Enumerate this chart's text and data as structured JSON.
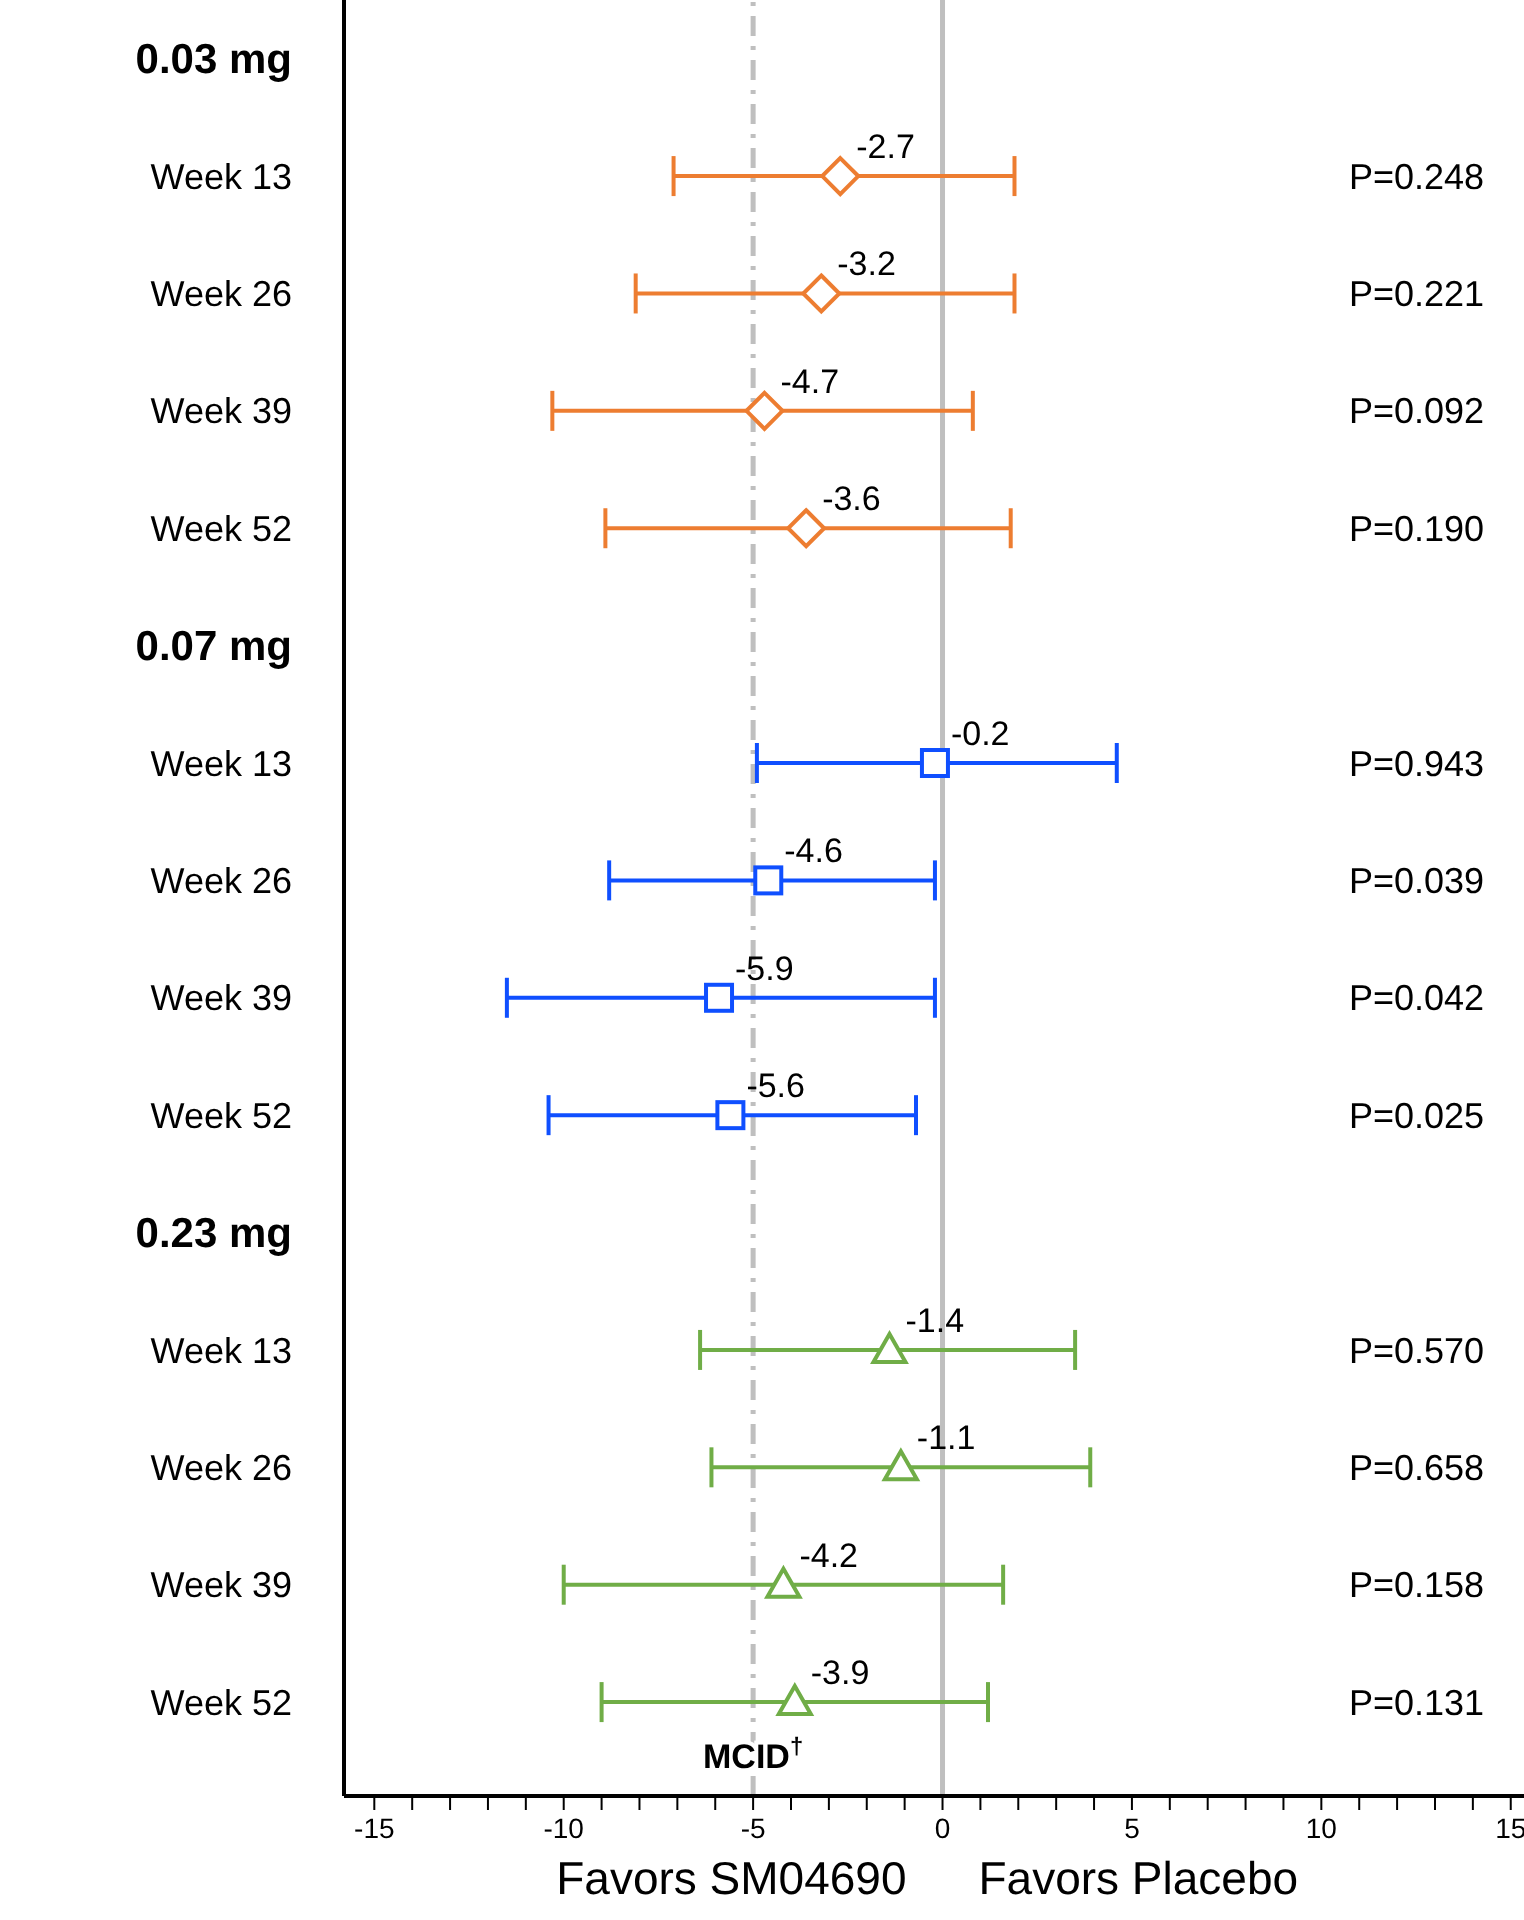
{
  "chart_data": {
    "type": "scatter",
    "orientation": "horizontal",
    "categories": [
      "0.03 mg",
      "Week 13",
      "Week 26",
      "Week 39",
      "Week 52",
      "0.07 mg",
      "Week 13",
      "Week 26",
      "Week 39",
      "Week 52",
      "0.23 mg",
      "Week 13",
      "Week 26",
      "Week 39",
      "Week 52"
    ],
    "series": [
      {
        "color": "#ed7d31",
        "marker": "diamond",
        "values": [
          null,
          -2.7,
          -3.2,
          -4.7,
          -3.6,
          null,
          null,
          null,
          null,
          null,
          null,
          null,
          null,
          null,
          null
        ],
        "errors": [
          null,
          [
            -7.1,
            1.9
          ],
          [
            -8.1,
            1.9
          ],
          [
            -10.3,
            0.8
          ],
          [
            -8.9,
            1.8
          ],
          null,
          null,
          null,
          null,
          null,
          null,
          null,
          null,
          null,
          null
        ]
      },
      {
        "color": "#0f4fff",
        "marker": "square",
        "values": [
          null,
          null,
          null,
          null,
          null,
          null,
          -0.2,
          -4.6,
          -5.9,
          -5.6,
          null,
          null,
          null,
          null,
          null
        ],
        "errors": [
          null,
          null,
          null,
          null,
          null,
          null,
          [
            -4.9,
            4.6
          ],
          [
            -8.8,
            -0.2
          ],
          [
            -11.5,
            -0.2
          ],
          [
            -10.4,
            -0.7
          ],
          null,
          null,
          null,
          null,
          null
        ]
      },
      {
        "color": "#70ad47",
        "marker": "triangle",
        "values": [
          null,
          null,
          null,
          null,
          null,
          null,
          null,
          null,
          null,
          null,
          null,
          -1.4,
          -1.1,
          -4.2,
          -3.9
        ],
        "errors": [
          null,
          null,
          null,
          null,
          null,
          null,
          null,
          null,
          null,
          null,
          null,
          [
            -6.4,
            3.5
          ],
          [
            -6.1,
            3.9
          ],
          [
            -10.0,
            1.6
          ],
          [
            -9.0,
            1.2
          ]
        ]
      }
    ],
    "data_labels": true,
    "xlim": [
      -15.8,
      15.35
    ],
    "xticks": [
      -15,
      {
        "value": -14,
        "label": null
      },
      {
        "value": -13,
        "label": null
      },
      {
        "value": -12,
        "label": null
      },
      {
        "value": -11,
        "label": null
      },
      -10,
      {
        "value": -9,
        "label": null
      },
      {
        "value": -8,
        "label": null
      },
      {
        "value": -7,
        "label": null
      },
      {
        "value": -6,
        "label": null
      },
      -5,
      {
        "value": -4,
        "label": null
      },
      {
        "value": -3,
        "label": null
      },
      {
        "value": -2,
        "label": null
      },
      {
        "value": -1,
        "label": null
      },
      0,
      {
        "value": 1,
        "label": null
      },
      {
        "value": 2,
        "label": null
      },
      {
        "value": 3,
        "label": null
      },
      {
        "value": 4,
        "label": null
      },
      5,
      {
        "value": 6,
        "label": null
      },
      {
        "value": 7,
        "label": null
      },
      {
        "value": 8,
        "label": null
      },
      {
        "value": 9,
        "label": null
      },
      10,
      {
        "value": 11,
        "label": null
      },
      {
        "value": 12,
        "label": null
      },
      {
        "value": 13,
        "label": null
      },
      {
        "value": 14,
        "label": null
      },
      15
    ],
    "ref_lines": [
      {
        "axis": "x",
        "value": -5,
        "label": "MCID$^{†}$",
        "color": "#bfbfbf",
        "line_style": "dashed"
      },
      {
        "axis": "x",
        "value": 0,
        "color": "#bfbfbf",
        "line_style": "solid"
      }
    ],
    "annotations": [
      "P=0.248",
      "P=0.221",
      "P=0.092",
      "P=0.190",
      "P=0.943",
      "P=0.039",
      "P=0.042",
      "P=0.025",
      "P=0.570",
      "P=0.658",
      "P=0.158",
      "P=0.131",
      "Favors SM04690",
      "Favors Placebo"
    ]
  }
}
